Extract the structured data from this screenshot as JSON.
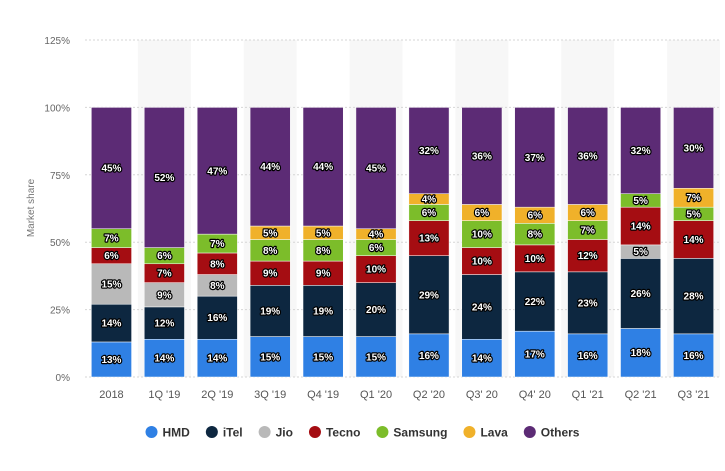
{
  "chart_data": {
    "type": "bar",
    "stacked": true,
    "ylabel": "Market share",
    "xlabel": "",
    "ylim": [
      0,
      125
    ],
    "yticks": [
      0,
      25,
      50,
      75,
      100,
      125
    ],
    "ytick_labels": [
      "0%",
      "25%",
      "50%",
      "75%",
      "100%",
      "125%"
    ],
    "grid": true,
    "legend_position": "bottom",
    "categories": [
      "2018",
      "1Q '19",
      "2Q '19",
      "3Q '19",
      "Q4 '19",
      "Q1 '20",
      "Q2 '20",
      "Q3' 20",
      "Q4' 20",
      "Q1 '21",
      "Q2 '21",
      "Q3 '21"
    ],
    "series": [
      {
        "name": "HMD",
        "color": "#2f80e4",
        "values": [
          13,
          14,
          14,
          15,
          15,
          15,
          16,
          14,
          17,
          16,
          18,
          16
        ]
      },
      {
        "name": "iTel",
        "color": "#0d2740",
        "values": [
          14,
          12,
          16,
          19,
          19,
          20,
          29,
          24,
          22,
          23,
          26,
          28
        ]
      },
      {
        "name": "Jio",
        "color": "#b9b9b9",
        "values": [
          15,
          9,
          8,
          0,
          0,
          0,
          0,
          0,
          0,
          0,
          5,
          0
        ]
      },
      {
        "name": "Tecno",
        "color": "#a50d12",
        "values": [
          6,
          7,
          8,
          9,
          9,
          10,
          13,
          10,
          10,
          12,
          14,
          14
        ]
      },
      {
        "name": "Samsung",
        "color": "#7cbd2a",
        "values": [
          7,
          6,
          7,
          8,
          8,
          6,
          6,
          10,
          8,
          7,
          5,
          5
        ]
      },
      {
        "name": "Lava",
        "color": "#f0b12a",
        "values": [
          0,
          0,
          0,
          5,
          5,
          4,
          4,
          6,
          6,
          6,
          0,
          7
        ]
      },
      {
        "name": "Others",
        "color": "#5c2b75",
        "values": [
          45,
          52,
          47,
          44,
          44,
          45,
          32,
          36,
          37,
          36,
          32,
          30
        ]
      }
    ],
    "value_suffix": "%"
  }
}
